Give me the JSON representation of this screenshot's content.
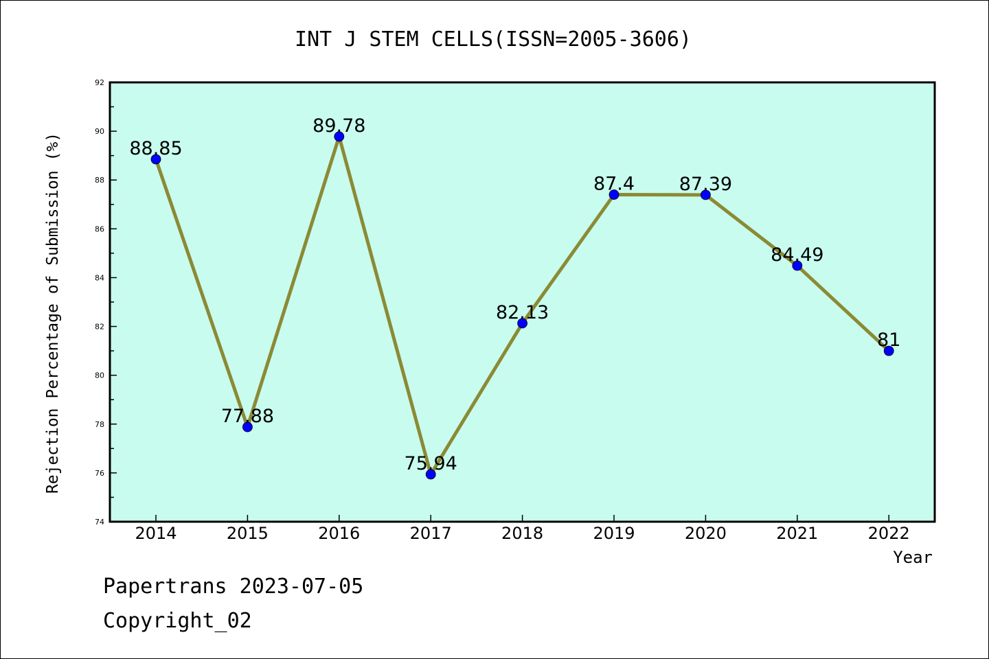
{
  "chart_data": {
    "type": "line",
    "title": "INT J STEM CELLS(ISSN=2005-3606)",
    "xlabel": "Year",
    "ylabel": "Rejection Percentage of Submission (%)",
    "categories": [
      "2014",
      "2015",
      "2016",
      "2017",
      "2018",
      "2019",
      "2020",
      "2021",
      "2022"
    ],
    "values": [
      88.85,
      77.88,
      89.78,
      75.94,
      82.13,
      87.4,
      87.39,
      84.49,
      81
    ],
    "data_labels": [
      "88.85",
      "77.88",
      "89.78",
      "75.94",
      "82.13",
      "87.4",
      "87.39",
      "84.49",
      "81"
    ],
    "ylim": [
      74,
      92
    ],
    "yticks": [
      "74",
      "76",
      "78",
      "80",
      "82",
      "84",
      "86",
      "88",
      "90",
      "92"
    ],
    "grid": false,
    "colors": {
      "plot_background": "#c8fcee",
      "line": "#8b8a35",
      "marker": "#0000ff"
    }
  },
  "footer": {
    "line1": "Papertrans 2023-07-05",
    "line2": "Copyright_02"
  }
}
